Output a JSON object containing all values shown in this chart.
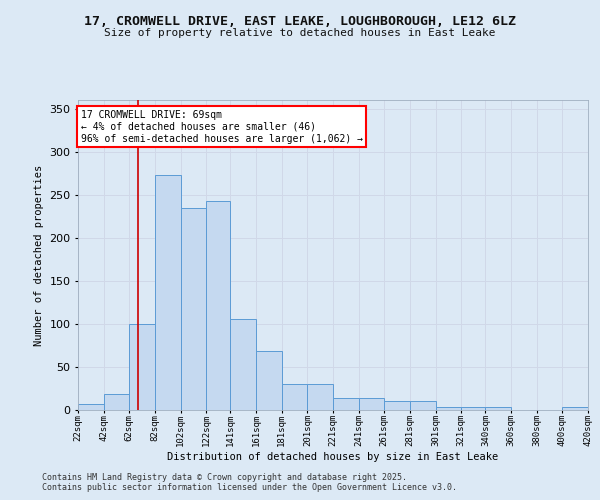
{
  "title": "17, CROMWELL DRIVE, EAST LEAKE, LOUGHBOROUGH, LE12 6LZ",
  "subtitle": "Size of property relative to detached houses in East Leake",
  "xlabel": "Distribution of detached houses by size in East Leake",
  "ylabel": "Number of detached properties",
  "footnote1": "Contains HM Land Registry data © Crown copyright and database right 2025.",
  "footnote2": "Contains public sector information licensed under the Open Government Licence v3.0.",
  "annotation_title": "17 CROMWELL DRIVE: 69sqm",
  "annotation_line1": "← 4% of detached houses are smaller (46)",
  "annotation_line2": "96% of semi-detached houses are larger (1,062) →",
  "bar_color": "#c5d9f0",
  "bar_edge_color": "#5b9bd5",
  "grid_color": "#d0d8e8",
  "background_color": "#dce9f5",
  "red_line_color": "#cc0000",
  "property_size_sqm": 69,
  "bin_edges": [
    22,
    42,
    62,
    82,
    102,
    122,
    141,
    161,
    181,
    201,
    221,
    241,
    261,
    281,
    301,
    321,
    340,
    360,
    380,
    400,
    420
  ],
  "bin_labels": [
    "22sqm",
    "42sqm",
    "62sqm",
    "82sqm",
    "102sqm",
    "122sqm",
    "141sqm",
    "161sqm",
    "181sqm",
    "201sqm",
    "221sqm",
    "241sqm",
    "261sqm",
    "281sqm",
    "301sqm",
    "321sqm",
    "340sqm",
    "360sqm",
    "380sqm",
    "400sqm",
    "420sqm"
  ],
  "counts": [
    7,
    19,
    100,
    273,
    235,
    243,
    106,
    69,
    30,
    30,
    14,
    14,
    10,
    10,
    4,
    4,
    4,
    0,
    0,
    3
  ],
  "ylim": [
    0,
    360
  ],
  "yticks": [
    0,
    50,
    100,
    150,
    200,
    250,
    300,
    350
  ]
}
